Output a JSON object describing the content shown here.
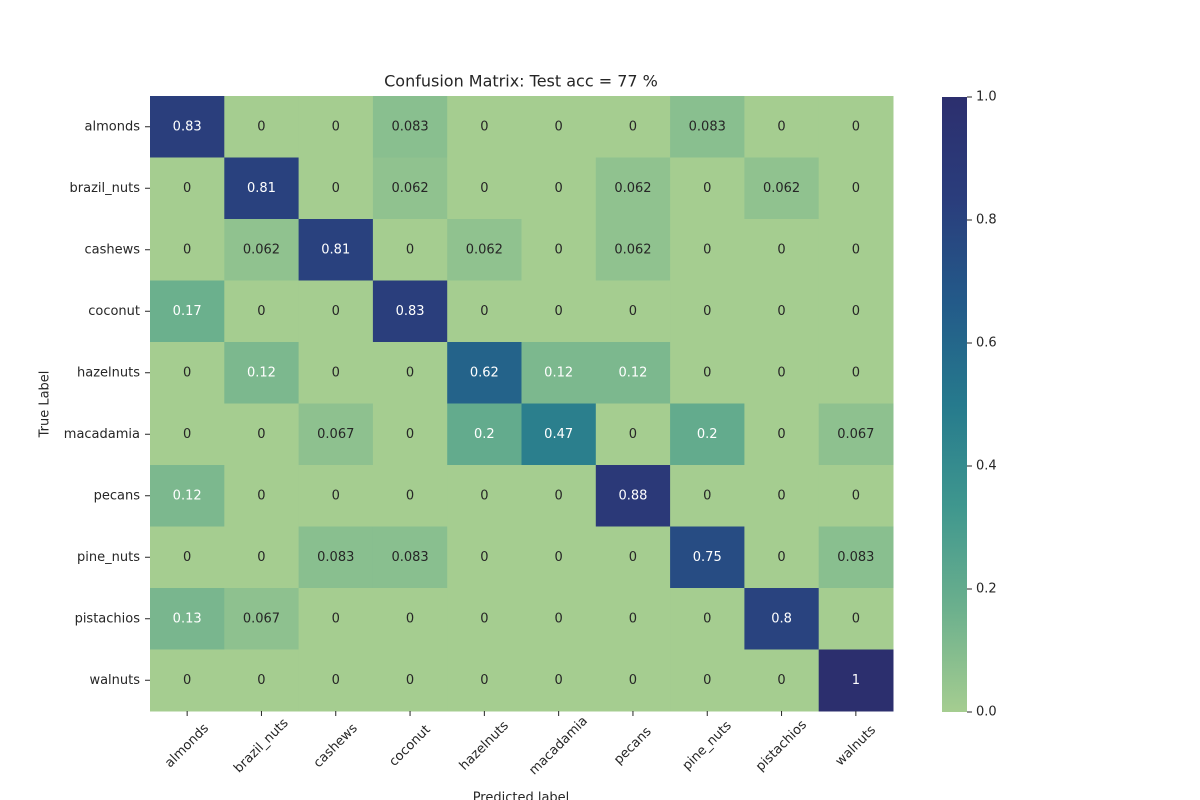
{
  "chart_data": {
    "type": "heatmap",
    "title": "Confusion Matrix: Test acc = 77 %",
    "x_label": "Predicted label",
    "y_label": "True Label",
    "x_categories": [
      "almonds",
      "brazil_nuts",
      "cashews",
      "coconut",
      "hazelnuts",
      "macadamia",
      "pecans",
      "pine_nuts",
      "pistachios",
      "walnuts"
    ],
    "y_categories": [
      "almonds",
      "brazil_nuts",
      "cashews",
      "coconut",
      "hazelnuts",
      "macadamia",
      "pecans",
      "pine_nuts",
      "pistachios",
      "walnuts"
    ],
    "values": [
      [
        0.83,
        0,
        0,
        0.083,
        0,
        0,
        0,
        0.083,
        0,
        0
      ],
      [
        0,
        0.81,
        0,
        0.062,
        0,
        0,
        0.062,
        0,
        0.062,
        0
      ],
      [
        0,
        0.062,
        0.81,
        0,
        0.062,
        0,
        0.062,
        0,
        0,
        0
      ],
      [
        0.17,
        0,
        0,
        0.83,
        0,
        0,
        0,
        0,
        0,
        0
      ],
      [
        0,
        0.12,
        0,
        0,
        0.62,
        0.12,
        0.12,
        0,
        0,
        0
      ],
      [
        0,
        0,
        0.067,
        0,
        0.2,
        0.47,
        0,
        0.2,
        0,
        0.067
      ],
      [
        0.12,
        0,
        0,
        0,
        0,
        0,
        0.88,
        0,
        0,
        0
      ],
      [
        0,
        0,
        0.083,
        0.083,
        0,
        0,
        0,
        0.75,
        0,
        0.083
      ],
      [
        0.13,
        0.067,
        0,
        0,
        0,
        0,
        0,
        0,
        0.8,
        0
      ],
      [
        0,
        0,
        0,
        0,
        0,
        0,
        0,
        0,
        0,
        1
      ]
    ],
    "colormap": [
      "#a5cd90",
      "#6cb08d",
      "#3f978e",
      "#267a8d",
      "#235a89",
      "#2a3d7c",
      "#2c2f6e"
    ],
    "clim": [
      0,
      1
    ],
    "cticks": [
      {
        "value": 0,
        "label": "0.0"
      },
      {
        "value": 0.2,
        "label": "0.2"
      },
      {
        "value": 0.4,
        "label": "0.4"
      },
      {
        "value": 0.6,
        "label": "0.6"
      },
      {
        "value": 0.8,
        "label": "0.8"
      },
      {
        "value": 1,
        "label": "1.0"
      }
    ]
  }
}
